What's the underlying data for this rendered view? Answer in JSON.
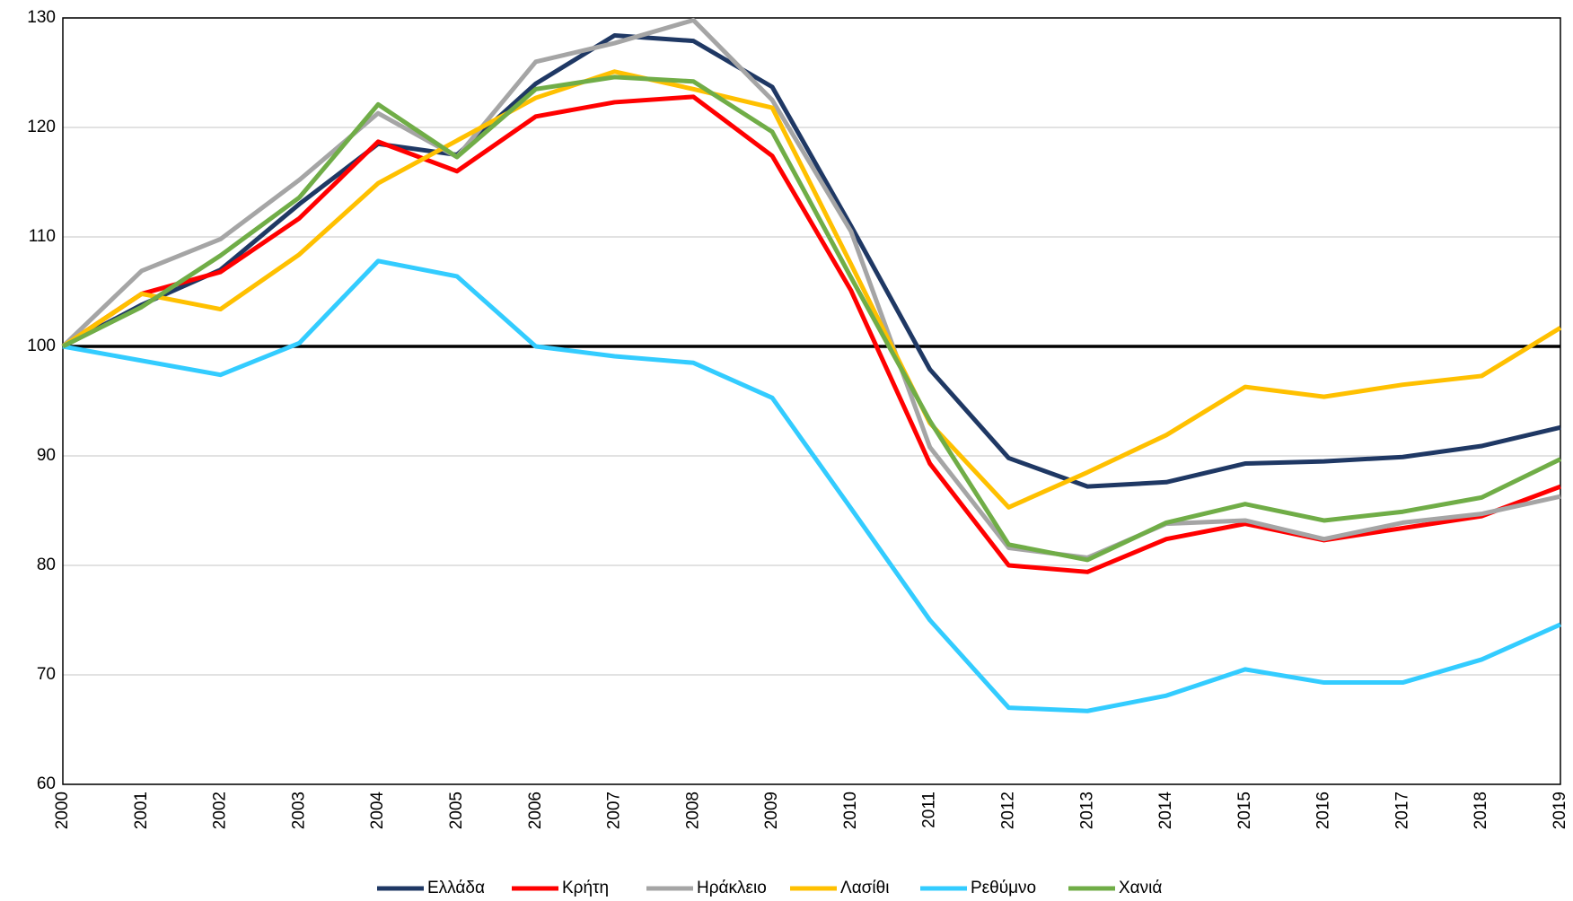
{
  "chart_data": {
    "type": "line",
    "categories": [
      "2000",
      "2001",
      "2002",
      "2003",
      "2004",
      "2005",
      "2006",
      "2007",
      "2008",
      "2009",
      "2010",
      "2011",
      "2012",
      "2013",
      "2014",
      "2015",
      "2016",
      "2017",
      "2018",
      "2019"
    ],
    "series": [
      {
        "name": "Ελλάδα",
        "color": "#1f3864",
        "values": [
          100,
          103.8,
          107,
          113,
          118.5,
          117.5,
          124,
          128.4,
          127.9,
          123.7,
          111,
          97.9,
          89.8,
          87.2,
          87.6,
          89.3,
          89.5,
          89.9,
          90.9,
          92.6
        ]
      },
      {
        "name": "Κρήτη",
        "color": "#ff0000",
        "values": [
          100,
          104.8,
          106.8,
          111.7,
          118.7,
          116,
          121,
          122.3,
          122.8,
          117.4,
          105.1,
          89.3,
          80,
          79.4,
          82.4,
          83.8,
          82.3,
          83.4,
          84.5,
          87.2
        ]
      },
      {
        "name": "Ηράκλειο",
        "color": "#a5a5a5",
        "values": [
          100,
          106.9,
          109.8,
          115.2,
          121.3,
          117.3,
          126,
          127.7,
          129.8,
          122.5,
          110.5,
          90.8,
          81.6,
          80.7,
          83.8,
          84.1,
          82.4,
          83.9,
          84.7,
          86.3
        ]
      },
      {
        "name": "Λασίθι",
        "color": "#ffc000",
        "values": [
          100,
          104.8,
          103.4,
          108.4,
          114.9,
          118.8,
          122.7,
          125.1,
          123.5,
          121.8,
          107.5,
          93,
          85.3,
          88.5,
          91.9,
          96.3,
          95.4,
          96.5,
          97.3,
          101.7
        ]
      },
      {
        "name": "Ρεθύμνο",
        "color": "#33ccff",
        "values": [
          100,
          98.7,
          97.4,
          100.3,
          107.8,
          106.4,
          100,
          99.1,
          98.5,
          95.3,
          85.2,
          75,
          67,
          66.7,
          68.1,
          70.5,
          69.3,
          69.3,
          71.4,
          74.6
        ]
      },
      {
        "name": "Χανιά",
        "color": "#70ad47",
        "values": [
          100,
          103.6,
          108.3,
          113.6,
          122.1,
          117.3,
          123.5,
          124.6,
          124.2,
          119.6,
          106.3,
          93.2,
          81.9,
          80.5,
          83.9,
          85.6,
          84.1,
          84.9,
          86.2,
          89.7
        ]
      }
    ],
    "reference_line": 100,
    "ylim": [
      60,
      130
    ],
    "yticks": [
      60,
      70,
      80,
      90,
      100,
      110,
      120,
      130
    ],
    "grid": true,
    "legend": "bottom"
  }
}
